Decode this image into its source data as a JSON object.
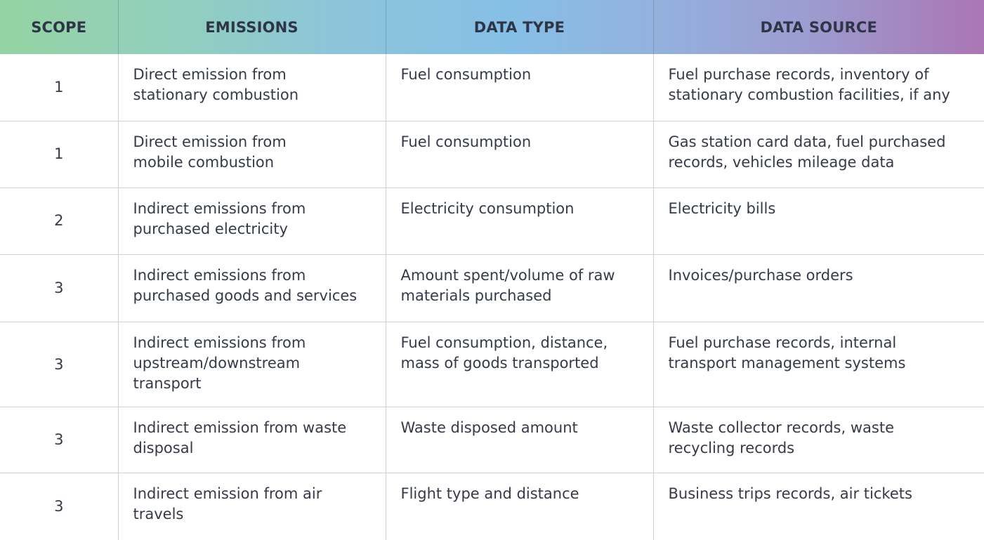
{
  "headers": {
    "scope": "SCOPE",
    "emissions": "EMISSIONS",
    "data_type": "DATA TYPE",
    "data_source": "DATA SOURCE"
  },
  "rows": [
    {
      "scope": "1",
      "emissions": "Direct emission from\nstationary combustion",
      "data_type": "Fuel consumption",
      "data_source": "Fuel purchase records, inventory of\nstationary combustion facilities, if any"
    },
    {
      "scope": "1",
      "emissions": "Direct emission from\nmobile combustion",
      "data_type": "Fuel consumption",
      "data_source": "Gas station card data, fuel purchased\nrecords, vehicles mileage data"
    },
    {
      "scope": "2",
      "emissions": "Indirect emissions from\npurchased electricity",
      "data_type": "Electricity consumption",
      "data_source": "Electricity bills"
    },
    {
      "scope": "3",
      "emissions": "Indirect emissions from\npurchased goods and services",
      "data_type": "Amount spent/volume of raw\nmaterials purchased",
      "data_source": "Invoices/purchase orders"
    },
    {
      "scope": "3",
      "emissions": "Indirect emissions from\nupstream/downstream\ntransport",
      "data_type": "Fuel consumption, distance,\nmass of goods transported",
      "data_source": "Fuel purchase records, internal\ntransport management systems"
    },
    {
      "scope": "3",
      "emissions": "Indirect emission from waste\ndisposal",
      "data_type": "Waste disposed amount",
      "data_source": "Waste collector records, waste\nrecycling records"
    },
    {
      "scope": "3",
      "emissions": "Indirect emission from air\ntravels",
      "data_type": "Flight type and distance",
      "data_source": "Business trips records, air tickets"
    }
  ]
}
